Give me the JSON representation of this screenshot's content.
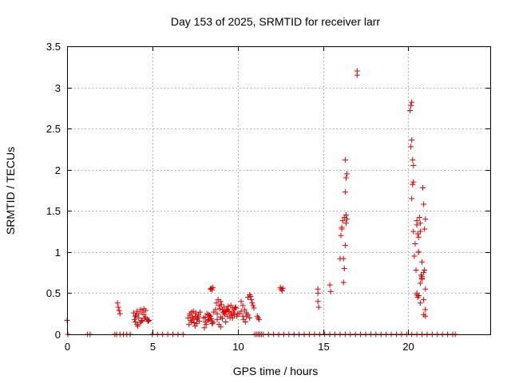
{
  "chart_data": {
    "type": "scatter",
    "title": "Day 153 of 2025, SRMTID for receiver larr",
    "xlabel": "GPS time / hours",
    "ylabel": "SRMTID / TECUs",
    "xlim": [
      0,
      24.8
    ],
    "ylim": [
      0,
      3.5
    ],
    "xticks": [
      0,
      5,
      10,
      15,
      20
    ],
    "xtick_labels": [
      "0",
      "5",
      "10",
      "15",
      "20"
    ],
    "yticks": [
      0,
      0.5,
      1,
      1.5,
      2,
      2.5,
      3,
      3.5
    ],
    "ytick_labels": [
      "0",
      "0.5",
      "1",
      "1.5",
      "2",
      "2.5",
      "3",
      "3.5"
    ],
    "grid": true,
    "marker": "plus",
    "color": "#e00000",
    "series": [
      {
        "name": "SRMTID",
        "x": [
          0.0,
          0.05,
          1.2,
          1.35,
          2.8,
          2.9,
          3.1,
          3.3,
          3.5,
          3.7,
          2.95,
          3.0,
          3.05,
          3.1,
          3.9,
          4.0,
          4.1,
          4.2,
          4.3,
          4.4,
          4.5,
          4.6,
          3.95,
          4.0,
          4.1,
          4.2,
          4.3,
          4.4,
          4.5,
          4.6,
          4.15,
          4.35,
          4.55,
          4.05,
          4.7,
          4.75,
          4.8,
          5.0,
          5.3,
          5.6,
          5.9,
          6.2,
          6.5,
          6.8,
          7.1,
          7.2,
          7.3,
          7.4,
          7.5,
          7.6,
          7.7,
          7.8,
          7.15,
          7.25,
          7.35,
          7.45,
          7.55,
          7.65,
          7.75,
          7.2,
          7.4,
          7.6,
          7.3,
          7.5,
          7.7,
          8.0,
          8.1,
          8.2,
          8.3,
          8.4,
          8.5,
          8.6,
          8.05,
          8.15,
          8.25,
          8.35,
          8.45,
          8.55,
          8.1,
          8.3,
          8.5,
          8.4,
          8.45,
          8.5,
          8.55,
          8.7,
          8.8,
          8.9,
          9.0,
          9.1,
          9.2,
          9.3,
          9.4,
          9.5,
          9.6,
          9.7,
          9.8,
          9.9,
          10.0,
          8.75,
          8.85,
          8.95,
          9.05,
          9.15,
          9.25,
          9.35,
          9.45,
          9.55,
          9.65,
          9.75,
          9.85,
          9.95,
          8.8,
          9.0,
          9.2,
          9.4,
          9.6,
          9.8,
          9.1,
          9.3,
          9.5,
          9.7,
          8.9,
          9.0,
          10.1,
          10.2,
          10.3,
          10.4,
          10.5,
          10.6,
          10.7,
          10.2,
          10.3,
          10.35,
          10.45,
          10.5,
          10.6,
          10.7,
          10.75,
          10.8,
          10.85,
          10.9,
          10.95,
          11.0,
          11.1,
          11.2,
          11.3,
          11.4,
          11.5,
          11.8,
          12.1,
          12.4,
          12.7,
          13.0,
          13.3,
          13.6,
          13.9,
          14.2,
          14.5,
          14.8,
          11.15,
          11.2,
          11.25,
          12.5,
          12.55,
          12.6,
          12.65,
          14.7,
          14.7,
          14.7,
          14.75,
          15.4,
          15.45,
          15.1,
          15.4,
          15.7,
          16.0,
          16.3,
          16.6,
          16.9,
          17.2,
          17.5,
          17.8,
          18.1,
          18.4,
          18.7,
          19.0,
          19.3,
          19.6,
          19.9,
          16.0,
          16.05,
          16.1,
          16.15,
          16.2,
          16.25,
          16.3,
          16.35,
          16.4,
          16.3,
          16.35,
          16.4,
          16.2,
          16.3,
          16.35,
          16.1,
          16.25,
          17.0,
          17.0,
          20.1,
          20.15,
          20.2,
          20.2,
          20.15,
          20.25,
          20.3,
          20.3,
          20.25,
          20.2,
          20.3,
          20.35,
          20.4,
          20.45,
          20.5,
          20.55,
          20.6,
          20.65,
          20.7,
          20.75,
          20.8,
          20.85,
          20.9,
          20.95,
          21.0,
          20.5,
          20.55,
          20.6,
          20.7,
          20.8,
          20.9,
          21.0,
          20.6,
          20.7,
          20.8,
          20.9,
          21.0,
          20.5,
          20.6,
          20.7,
          20.9,
          21.0,
          20.95,
          20.8,
          20.5,
          20.2,
          20.5,
          20.8,
          21.1,
          21.4,
          21.7,
          22.0,
          22.3,
          22.6,
          22.75
        ],
        "y": [
          0.17,
          0.0,
          0.0,
          0.0,
          0.0,
          0.0,
          0.0,
          0.0,
          0.0,
          0.0,
          0.38,
          0.33,
          0.29,
          0.25,
          0.26,
          0.22,
          0.28,
          0.25,
          0.3,
          0.27,
          0.31,
          0.29,
          0.18,
          0.15,
          0.12,
          0.2,
          0.14,
          0.17,
          0.24,
          0.21,
          0.1,
          0.16,
          0.19,
          0.23,
          0.18,
          0.16,
          0.17,
          0.0,
          0.0,
          0.0,
          0.0,
          0.0,
          0.0,
          0.0,
          0.2,
          0.25,
          0.15,
          0.28,
          0.22,
          0.18,
          0.24,
          0.27,
          0.12,
          0.17,
          0.21,
          0.14,
          0.26,
          0.2,
          0.16,
          0.23,
          0.19,
          0.13,
          0.27,
          0.1,
          0.22,
          0.2,
          0.15,
          0.25,
          0.18,
          0.22,
          0.13,
          0.27,
          0.08,
          0.12,
          0.17,
          0.23,
          0.19,
          0.14,
          0.21,
          0.24,
          0.16,
          0.55,
          0.56,
          0.54,
          0.57,
          0.3,
          0.25,
          0.35,
          0.4,
          0.3,
          0.33,
          0.28,
          0.22,
          0.27,
          0.25,
          0.2,
          0.3,
          0.32,
          0.25,
          0.38,
          0.42,
          0.31,
          0.36,
          0.27,
          0.24,
          0.29,
          0.34,
          0.2,
          0.23,
          0.27,
          0.33,
          0.22,
          0.18,
          0.21,
          0.26,
          0.3,
          0.35,
          0.24,
          0.19,
          0.15,
          0.28,
          0.32,
          0.12,
          0.09,
          0.25,
          0.28,
          0.22,
          0.3,
          0.26,
          0.24,
          0.2,
          0.4,
          0.35,
          0.18,
          0.15,
          0.22,
          0.45,
          0.48,
          0.46,
          0.42,
          0.38,
          0.35,
          0.32,
          0.0,
          0.0,
          0.0,
          0.0,
          0.0,
          0.0,
          0.0,
          0.0,
          0.0,
          0.0,
          0.0,
          0.0,
          0.0,
          0.0,
          0.0,
          0.0,
          0.0,
          0.22,
          0.2,
          0.18,
          0.57,
          0.55,
          0.53,
          0.56,
          0.55,
          0.5,
          0.4,
          0.33,
          0.6,
          0.52,
          0.0,
          0.0,
          0.0,
          0.0,
          0.0,
          0.0,
          0.0,
          0.0,
          0.0,
          0.0,
          0.0,
          0.0,
          0.0,
          0.0,
          0.0,
          0.0,
          0.0,
          0.92,
          1.2,
          1.3,
          1.38,
          0.63,
          0.8,
          1.08,
          1.45,
          1.4,
          1.73,
          1.9,
          1.95,
          0.92,
          2.12,
          1.35,
          1.28,
          1.42,
          3.2,
          3.15,
          2.72,
          2.78,
          2.82,
          2.36,
          2.28,
          2.12,
          2.05,
          1.85,
          1.82,
          1.65,
          1.25,
          0.95,
          1.1,
          0.78,
          1.38,
          1.22,
          1.0,
          1.42,
          1.35,
          0.72,
          0.88,
          1.78,
          1.58,
          1.28,
          1.4,
          0.5,
          0.45,
          0.47,
          0.62,
          0.7,
          0.75,
          0.55,
          1.18,
          1.25,
          0.67,
          0.42,
          0.3,
          1.33,
          1.0,
          0.38,
          0.24,
          0.22,
          0.78,
          0.68,
          0.48,
          0.0,
          0.0,
          0.0,
          0.0,
          0.0,
          0.0,
          0.0,
          0.0,
          0.0,
          0.0
        ]
      }
    ]
  }
}
